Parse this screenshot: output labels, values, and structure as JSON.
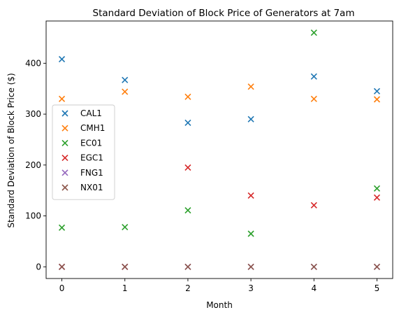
{
  "chart_data": {
    "type": "scatter",
    "title": "Standard Deviation of Block Price of Generators at 7am",
    "xlabel": "Month",
    "ylabel": "Standard Deviation of Block Price ($)",
    "x": [
      0,
      1,
      2,
      3,
      4,
      5
    ],
    "xlim": [
      -0.25,
      5.25
    ],
    "ylim": [
      -23,
      483
    ],
    "xticks": [
      0,
      1,
      2,
      3,
      4,
      5
    ],
    "yticks": [
      0,
      100,
      200,
      300,
      400
    ],
    "marker": "x",
    "grid": false,
    "legend_position": "center-left",
    "series": [
      {
        "name": "CAL1",
        "color": "#1f77b4",
        "values": [
          408,
          367,
          283,
          290,
          374,
          345
        ]
      },
      {
        "name": "CMH1",
        "color": "#ff7f0e",
        "values": [
          330,
          344,
          334,
          354,
          330,
          329
        ]
      },
      {
        "name": "EC01",
        "color": "#2ca02c",
        "values": [
          77,
          78,
          111,
          65,
          460,
          154
        ]
      },
      {
        "name": "EGC1",
        "color": "#d62728",
        "values": [
          0,
          0,
          195,
          140,
          121,
          136
        ]
      },
      {
        "name": "FNG1",
        "color": "#9467bd",
        "values": [
          0,
          0,
          0,
          0,
          0,
          0
        ]
      },
      {
        "name": "NX01",
        "color": "#8c564b",
        "values": [
          0,
          0,
          0,
          0,
          0,
          0
        ]
      }
    ]
  }
}
